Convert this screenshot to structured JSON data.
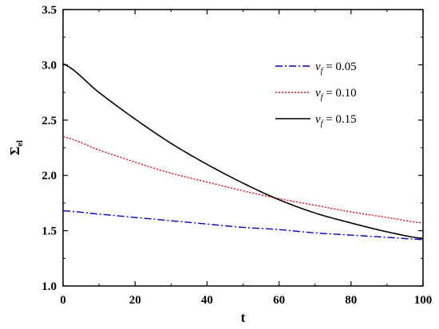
{
  "chart_data": {
    "type": "line",
    "xlabel": "t",
    "ylabel": "Σ",
    "ylabel_sub": "el",
    "xlim": [
      0,
      100
    ],
    "ylim": [
      1.0,
      3.5
    ],
    "xticks": [
      0,
      20,
      40,
      60,
      80,
      100
    ],
    "yticks": [
      1.0,
      1.5,
      2.0,
      2.5,
      3.0,
      3.5
    ],
    "xtick_labels": [
      "0",
      "20",
      "40",
      "60",
      "80",
      "100"
    ],
    "ytick_labels": [
      "1.0",
      "1.5",
      "2.0",
      "2.5",
      "3.0",
      "3.5"
    ],
    "grid": false,
    "legend_position": "top-right",
    "x": [
      0,
      10,
      20,
      30,
      40,
      50,
      60,
      70,
      80,
      90,
      100
    ],
    "series": [
      {
        "name_prefix": "v",
        "name_sub": "f",
        "name_value": " = 0.05",
        "color": "#0000cc",
        "dash": "dashdot",
        "values": [
          1.68,
          1.65,
          1.62,
          1.59,
          1.56,
          1.53,
          1.51,
          1.48,
          1.46,
          1.44,
          1.42
        ]
      },
      {
        "name_prefix": "v",
        "name_sub": "f",
        "name_value": " = 0.10",
        "color": "#ff0000",
        "dash": "dotted",
        "values": [
          2.35,
          2.23,
          2.12,
          2.02,
          1.94,
          1.86,
          1.79,
          1.73,
          1.67,
          1.62,
          1.57
        ]
      },
      {
        "name_prefix": "v",
        "name_sub": "f",
        "name_value": " = 0.15",
        "color": "#000000",
        "dash": "solid",
        "values": [
          3.01,
          2.75,
          2.51,
          2.29,
          2.1,
          1.93,
          1.78,
          1.66,
          1.57,
          1.49,
          1.43
        ]
      }
    ]
  }
}
